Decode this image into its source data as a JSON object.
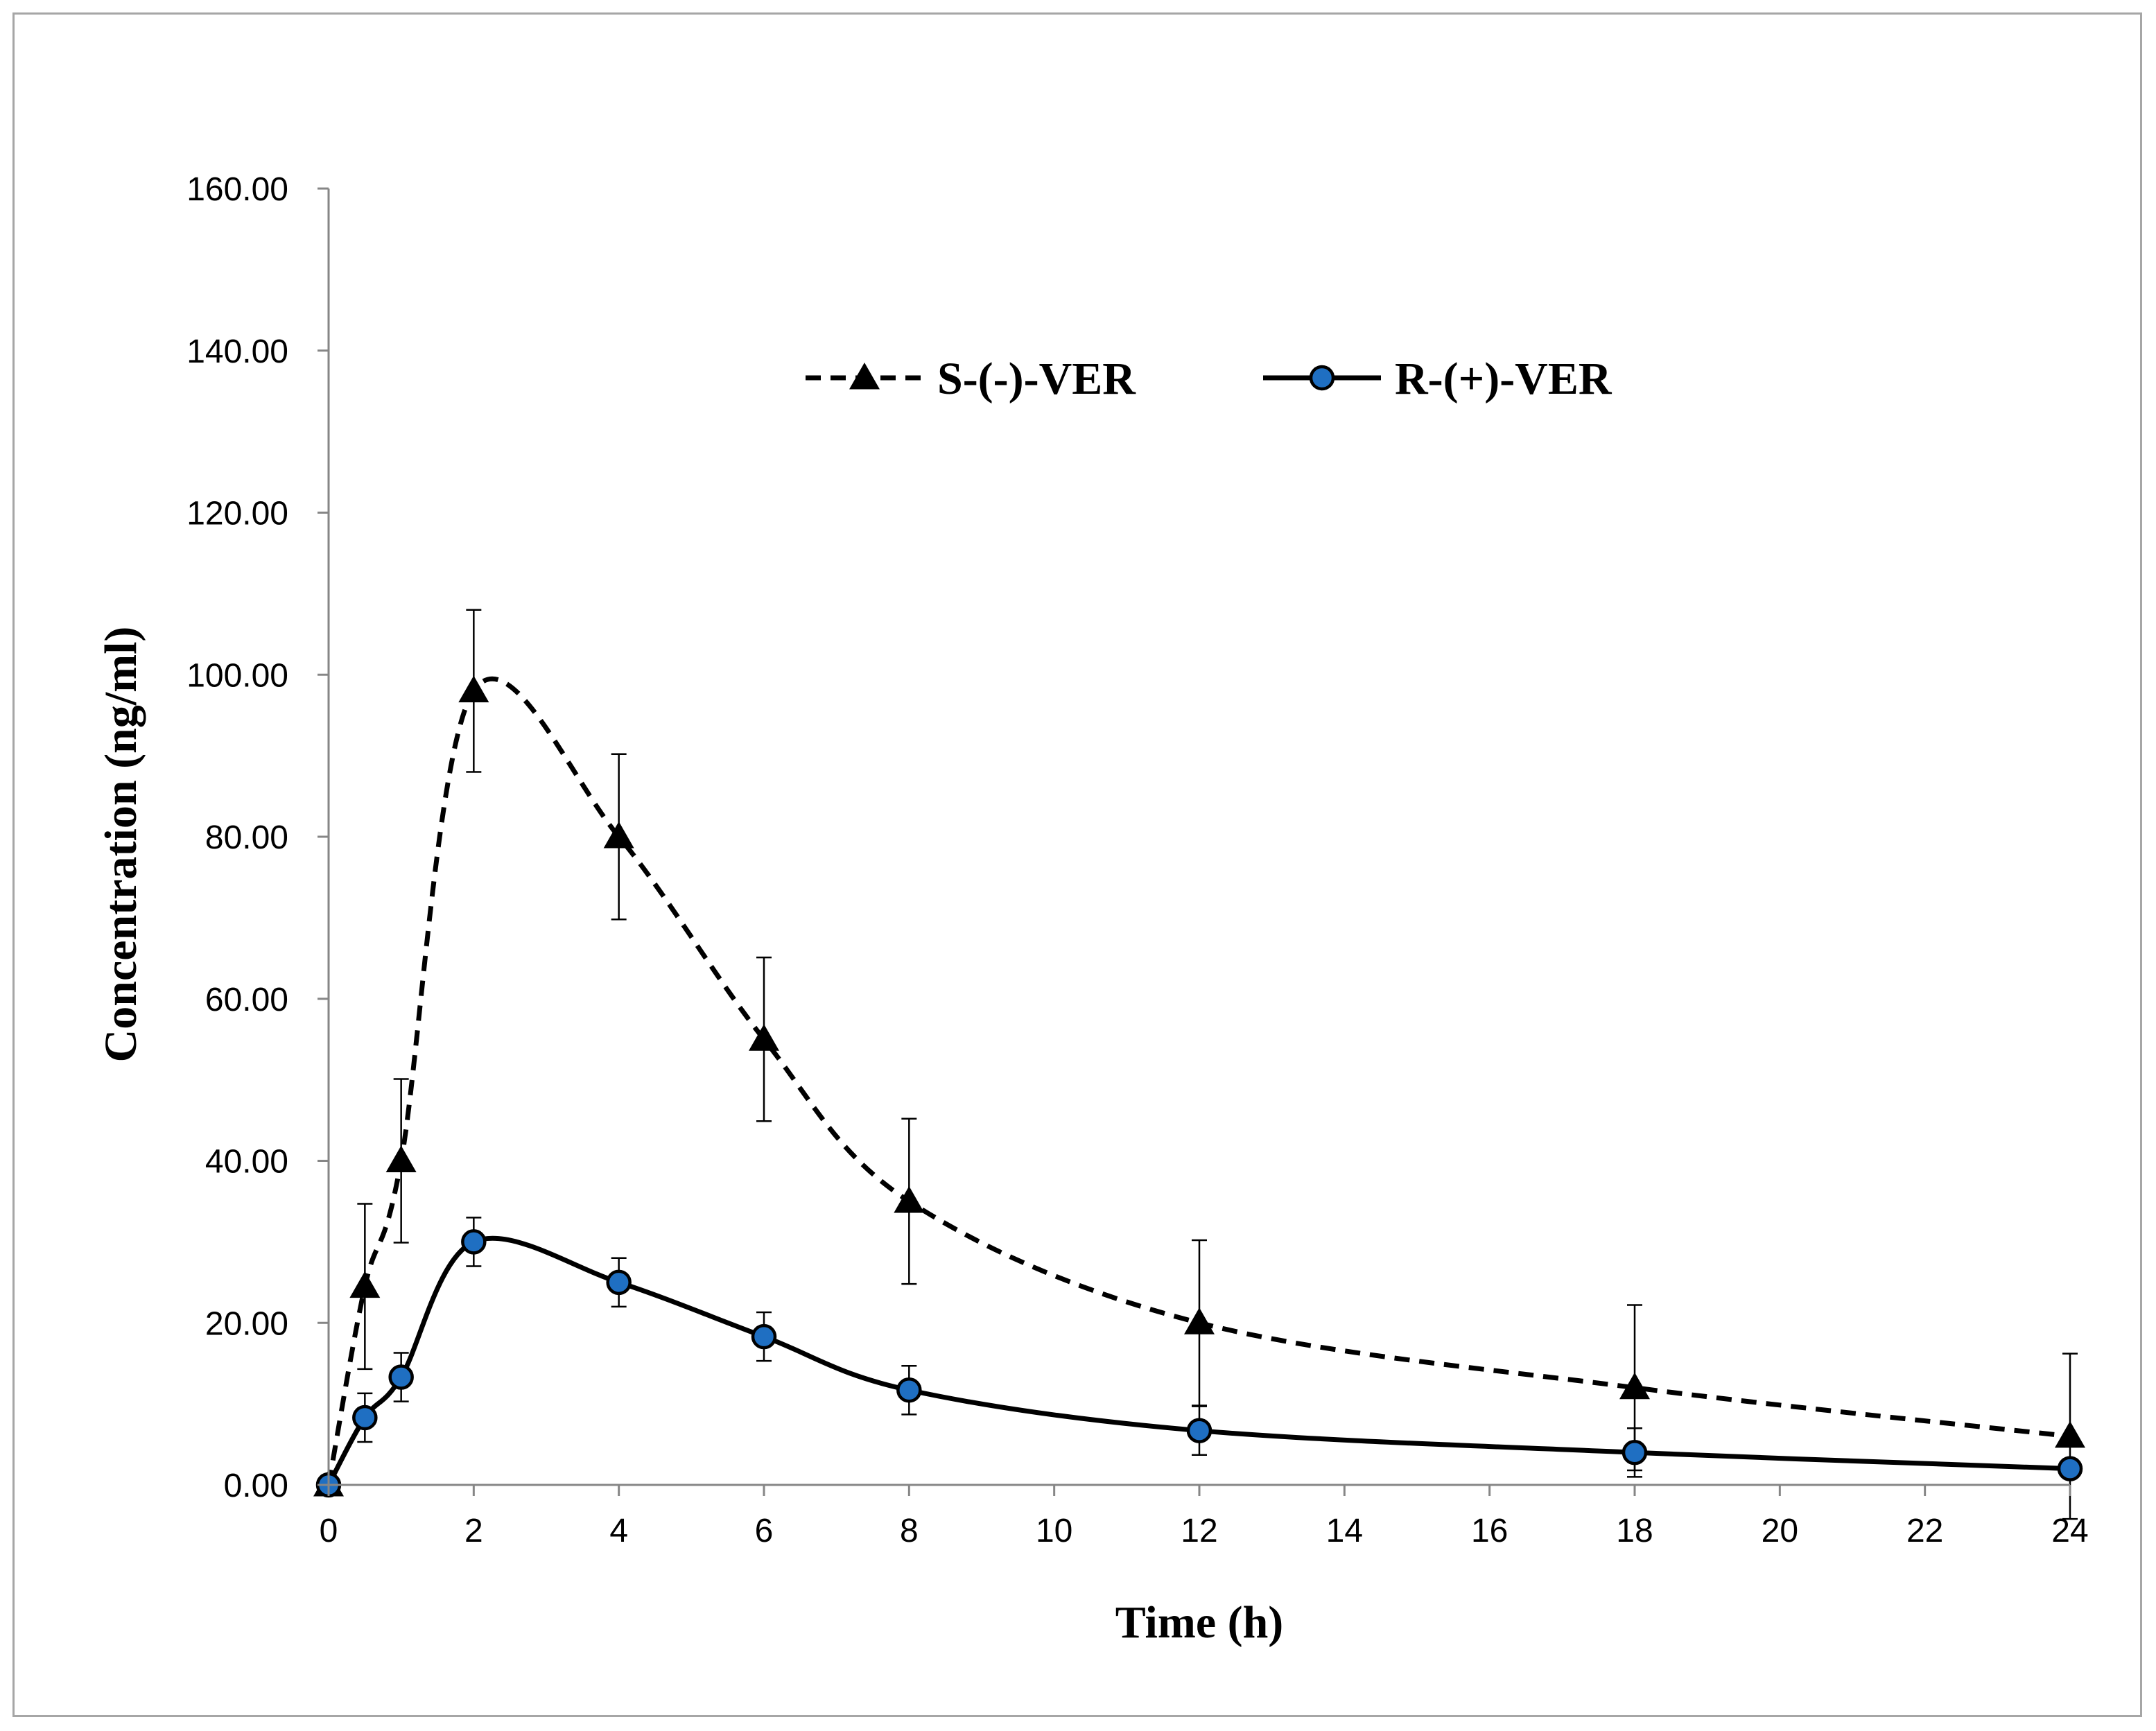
{
  "chart_data": {
    "type": "line",
    "title": "",
    "xlabel": "Time (h)",
    "ylabel": "Concentration (ng/ml)",
    "xlim": [
      0,
      24
    ],
    "ylim": [
      0,
      160
    ],
    "x_ticks": [
      "0",
      "2",
      "4",
      "6",
      "8",
      "10",
      "12",
      "14",
      "16",
      "18",
      "20",
      "22",
      "24"
    ],
    "y_ticks": [
      "0.00",
      "20.00",
      "40.00",
      "60.00",
      "80.00",
      "100.00",
      "120.00",
      "140.00",
      "160.00"
    ],
    "grid": false,
    "legend_position": "top-center",
    "series": [
      {
        "name": "S-(-)-VER",
        "marker": "triangle",
        "line_style": "dashed",
        "color": "#000000",
        "x": [
          0,
          0.5,
          1,
          2,
          4,
          6,
          8,
          12,
          18,
          24
        ],
        "values": [
          0,
          24.5,
          40,
          98,
          80,
          55,
          35,
          20,
          12,
          6
        ],
        "error": [
          0,
          10.2,
          10.1,
          10,
          10.2,
          10.1,
          10.2,
          10.2,
          10.2,
          10.2
        ]
      },
      {
        "name": "R-(+)-VER",
        "marker": "circle",
        "line_style": "solid",
        "color": "#000000",
        "marker_fill": "#1f6fc2",
        "x": [
          0,
          0.5,
          1,
          2,
          4,
          6,
          8,
          12,
          18,
          24
        ],
        "values": [
          0,
          8.3,
          13.3,
          30,
          25,
          18.3,
          11.7,
          6.7,
          4,
          2
        ],
        "error": [
          0,
          3,
          3,
          3,
          3,
          3,
          3,
          3,
          3,
          0
        ]
      }
    ]
  }
}
